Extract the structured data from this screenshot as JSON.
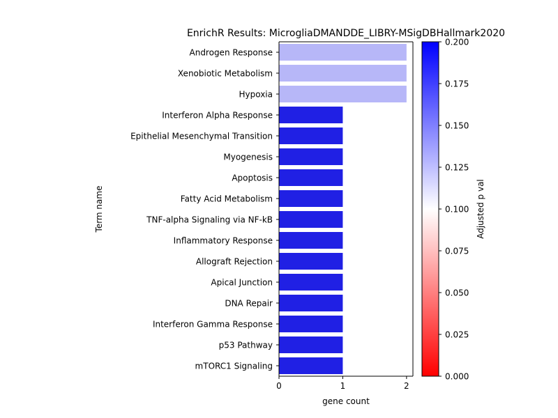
{
  "chart_data": {
    "type": "bar",
    "orientation": "horizontal",
    "title": "EnrichR Results: MicrogliaDMANDDE_LIBRY-MSigDBHallmark2020",
    "xlabel": "gene count",
    "ylabel": "Term name",
    "xlim": [
      0,
      2.1
    ],
    "xticks": [
      0,
      1,
      2
    ],
    "categories": [
      "Androgen Response",
      "Xenobiotic Metabolism",
      "Hypoxia",
      "Interferon Alpha Response",
      "Epithelial Mesenchymal Transition",
      "Myogenesis",
      "Apoptosis",
      "Fatty Acid Metabolism",
      "TNF-alpha Signaling via NF-kB",
      "Inflammatory Response",
      "Allograft Rejection",
      "Apical Junction",
      "DNA Repair",
      "Interferon Gamma Response",
      "p53 Pathway",
      "mTORC1 Signaling"
    ],
    "values": [
      2,
      2,
      2,
      1,
      1,
      1,
      1,
      1,
      1,
      1,
      1,
      1,
      1,
      1,
      1,
      1
    ],
    "bar_colors": [
      "#b7b7f8",
      "#b7b7f8",
      "#b7b7f8",
      "#2020e4",
      "#2020e4",
      "#2020e4",
      "#2020e4",
      "#2020e4",
      "#2020e4",
      "#2020e4",
      "#2020e4",
      "#2020e4",
      "#2020e4",
      "#2020e4",
      "#2020e4",
      "#2020e4"
    ],
    "colorbar": {
      "label": "Adjusted p val",
      "range": [
        0,
        0.2
      ],
      "ticks": [
        "0.000",
        "0.025",
        "0.050",
        "0.075",
        "0.100",
        "0.125",
        "0.150",
        "0.175",
        "0.200"
      ],
      "colormap": [
        "#ff0000",
        "#ffffff",
        "#0000ff"
      ]
    },
    "grid": false,
    "legend": "none"
  }
}
